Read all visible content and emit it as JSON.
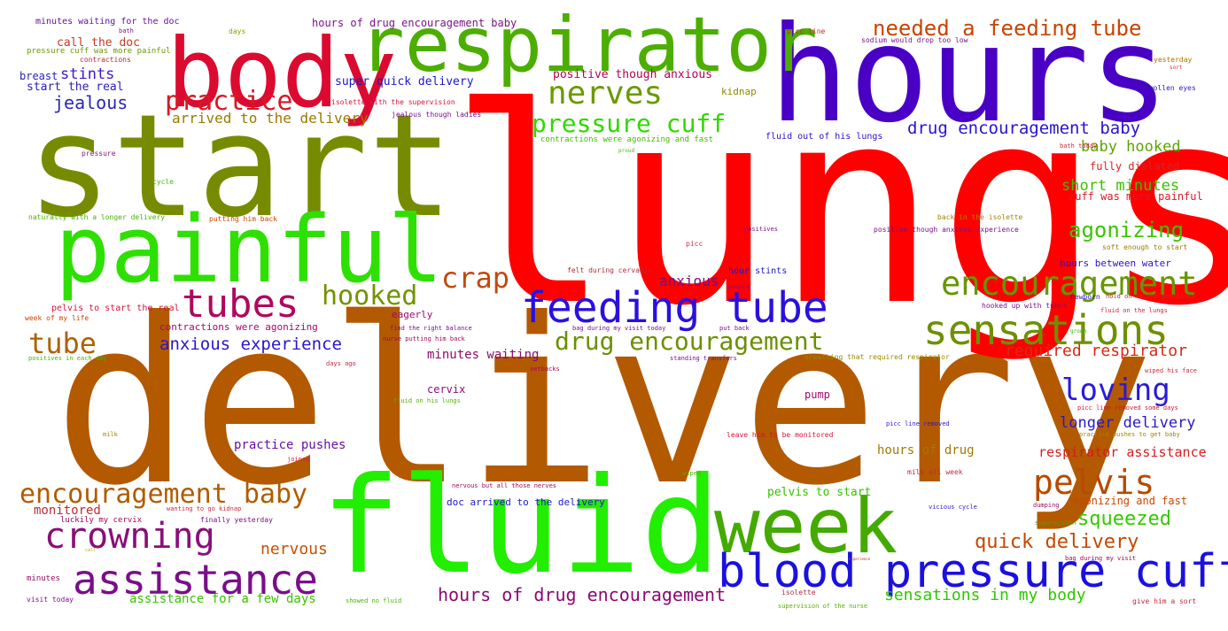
{
  "words": [
    {
      "text": "delivery",
      "color": "#b35900"
    },
    {
      "text": "lungs",
      "color": "#ff0000"
    },
    {
      "text": "start",
      "color": "#778b00"
    },
    {
      "text": "hours",
      "color": "#4a00c4"
    },
    {
      "text": "fluid",
      "color": "#22ee00"
    },
    {
      "text": "body",
      "color": "#dc0a30"
    },
    {
      "text": "respirator",
      "color": "#4cae00"
    },
    {
      "text": "painful",
      "color": "#2ee000"
    },
    {
      "text": "week",
      "color": "#44aa00"
    },
    {
      "text": "blood pressure cuff",
      "color": "#1a10e0"
    },
    {
      "text": "feeding tube",
      "color": "#2a10e0"
    },
    {
      "text": "sensations",
      "color": "#6e9000"
    },
    {
      "text": "encouragement",
      "color": "#669600"
    },
    {
      "text": "assistance",
      "color": "#7a0e8a"
    },
    {
      "text": "crowning",
      "color": "#8a0e7a"
    },
    {
      "text": "tubes",
      "color": "#b0085e"
    },
    {
      "text": "pelvis",
      "color": "#b84a00"
    },
    {
      "text": "encouragement baby",
      "color": "#b05c00"
    },
    {
      "text": "loving",
      "color": "#2a1ad6"
    },
    {
      "text": "nerves",
      "color": "#6a9a00"
    },
    {
      "text": "practice",
      "color": "#d41a24"
    },
    {
      "text": "hooked",
      "color": "#729200"
    },
    {
      "text": "crap",
      "color": "#c04a0c"
    },
    {
      "text": "tube",
      "color": "#b06000"
    },
    {
      "text": "drug encouragement",
      "color": "#6a9000"
    },
    {
      "text": "needed a feeding tube",
      "color": "#c84400"
    },
    {
      "text": "pressure cuff",
      "color": "#30d800"
    },
    {
      "text": "hours of drug encouragement",
      "color": "#8a0a74"
    },
    {
      "text": "agonizing",
      "color": "#3ac400"
    },
    {
      "text": "squeezed",
      "color": "#36c800"
    },
    {
      "text": "quick delivery",
      "color": "#c44800"
    },
    {
      "text": "drug encouragement baby",
      "color": "#2a12d0"
    },
    {
      "text": "anxious experience",
      "color": "#2a16cc"
    },
    {
      "text": "jealous",
      "color": "#2a28b4"
    },
    {
      "text": "nervous",
      "color": "#c65000"
    },
    {
      "text": "required respirator",
      "color": "#d42a16"
    },
    {
      "text": "sensations in my body",
      "color": "#2ec800"
    },
    {
      "text": "longer delivery",
      "color": "#2a18c8"
    },
    {
      "text": "respirator assistance",
      "color": "#d41e24"
    },
    {
      "text": "baby hooked",
      "color": "#5ca400"
    },
    {
      "text": "short minutes",
      "color": "#3ac000"
    },
    {
      "text": "arrived to the delivery",
      "color": "#9a7a00"
    },
    {
      "text": "anxious",
      "color": "#7a0e84"
    },
    {
      "text": "stints",
      "color": "#4018c4"
    },
    {
      "text": "monitored",
      "color": "#bc2c36"
    },
    {
      "text": "practice pushes",
      "color": "#6a10a0"
    },
    {
      "text": "hours of drug",
      "color": "#9c7c00"
    },
    {
      "text": "assistance for a few days",
      "color": "#3ac200"
    },
    {
      "text": "minutes waiting",
      "color": "#8a0c6c"
    },
    {
      "text": "pelvis to start",
      "color": "#3ac000"
    },
    {
      "text": "agonizing and fast",
      "color": "#c84600"
    },
    {
      "text": "positive though anxious",
      "color": "#b40050"
    },
    {
      "text": "super quick delivery",
      "color": "#1c18c4"
    },
    {
      "text": "start the real",
      "color": "#2c20b8"
    },
    {
      "text": "call the doc",
      "color": "#c83a20"
    },
    {
      "text": "breast",
      "color": "#2a24b8"
    },
    {
      "text": "hours of drug encouragement baby",
      "color": "#7a1488"
    },
    {
      "text": "cuff was more painful",
      "color": "#d41c26"
    },
    {
      "text": "fully dialated",
      "color": "#d42424"
    },
    {
      "text": "hours between water",
      "color": "#3010c4"
    },
    {
      "text": "doc arrived to the delivery",
      "color": "#2018c4"
    },
    {
      "text": "contractions were agonizing",
      "color": "#a2086c"
    },
    {
      "text": "cervix",
      "color": "#8a0e7c"
    },
    {
      "text": "pump",
      "color": "#9a0c70"
    },
    {
      "text": "kidnap",
      "color": "#8a8a00"
    },
    {
      "text": "eagerly",
      "color": "#9c0a68"
    },
    {
      "text": "hour stints",
      "color": "#2018c4"
    },
    {
      "text": "fluid out of his lungs",
      "color": "#2a10cc"
    },
    {
      "text": "contractions were agonizing and fast",
      "color": "#44b800"
    },
    {
      "text": "minutes waiting for the doc",
      "color": "#6a10a0"
    },
    {
      "text": "pressure cuff was more painful",
      "color": "#6a9a00"
    },
    {
      "text": "contractions",
      "color": "#b82a30"
    },
    {
      "text": "days",
      "color": "#8aa000"
    },
    {
      "text": "bath",
      "color": "#7a1088"
    },
    {
      "text": "picc line",
      "color": "#c8282c"
    },
    {
      "text": "sodium would drop too low",
      "color": "#7a1088"
    },
    {
      "text": "yesterday",
      "color": "#b07000"
    },
    {
      "text": "sort",
      "color": "#d83030"
    },
    {
      "text": "swollen eyes",
      "color": "#3018c0"
    },
    {
      "text": "isolette with the supervision",
      "color": "#d4143c"
    },
    {
      "text": "jealous though ladies",
      "color": "#7a1090"
    },
    {
      "text": "proud",
      "color": "#54b000"
    },
    {
      "text": "pressure",
      "color": "#8a1478"
    },
    {
      "text": "cycle",
      "color": "#3cc200"
    },
    {
      "text": "bath today",
      "color": "#c8283c"
    },
    {
      "text": "naturally with a longer delivery",
      "color": "#44b400"
    },
    {
      "text": "putting him back",
      "color": "#c84600"
    },
    {
      "text": "back in the isolette",
      "color": "#9a8800"
    },
    {
      "text": "positives",
      "color": "#7a1088"
    },
    {
      "text": "positive though anxious experience",
      "color": "#7a1088"
    },
    {
      "text": "soft enough to start",
      "color": "#9a7c00"
    },
    {
      "text": "picc",
      "color": "#d42c3c"
    },
    {
      "text": "felt during cervadil",
      "color": "#b02c3c"
    },
    {
      "text": "pumping",
      "color": "#a0085c"
    },
    {
      "text": "newborn",
      "color": "#3018c0"
    },
    {
      "text": "hold on to the positives",
      "color": "#c8283c"
    },
    {
      "text": "hooked up with tubes",
      "color": "#7a1088"
    },
    {
      "text": "fluid on the lungs",
      "color": "#c8283c"
    },
    {
      "text": "pelvis to start the real",
      "color": "#d4143c"
    },
    {
      "text": "week of my life",
      "color": "#c84600"
    },
    {
      "text": "find the right balance",
      "color": "#7a1088"
    },
    {
      "text": "nurse putting him back",
      "color": "#a0085c"
    },
    {
      "text": "bag during my visit today",
      "color": "#7a1088"
    },
    {
      "text": "put back",
      "color": "#7a1088"
    },
    {
      "text": "grown",
      "color": "#40b000"
    },
    {
      "text": "positives in each day",
      "color": "#44b400"
    },
    {
      "text": "days ago",
      "color": "#c8283c"
    },
    {
      "text": "standing transfers",
      "color": "#7a1088"
    },
    {
      "text": "breathing that required respirator",
      "color": "#9a8800"
    },
    {
      "text": "setbacks",
      "color": "#a0085c"
    },
    {
      "text": "wiped his face",
      "color": "#c8283c"
    },
    {
      "text": "fluid on his lungs",
      "color": "#54b000"
    },
    {
      "text": "picc line removed some days",
      "color": "#d4143c"
    },
    {
      "text": "milk",
      "color": "#9a8800"
    },
    {
      "text": "picc line removed",
      "color": "#3018c0"
    },
    {
      "text": "practice pushes to get baby",
      "color": "#9a8800"
    },
    {
      "text": "leave him to be monitored",
      "color": "#d4143c"
    },
    {
      "text": "joined",
      "color": "#c8283c"
    },
    {
      "text": "wiped",
      "color": "#54b000"
    },
    {
      "text": "milk all week",
      "color": "#c8283c"
    },
    {
      "text": "nervous but all those nerves",
      "color": "#a0085c"
    },
    {
      "text": "wanting to go kidnap",
      "color": "#c8283c"
    },
    {
      "text": "luckily my cervix",
      "color": "#a0085c"
    },
    {
      "text": "finally yesterday",
      "color": "#7a1088"
    },
    {
      "text": "vicious cycle",
      "color": "#3018c0"
    },
    {
      "text": "dumping",
      "color": "#9a0c64"
    },
    {
      "text": "supervision",
      "color": "#54a000"
    },
    {
      "text": "call",
      "color": "#b0b000"
    },
    {
      "text": "experience",
      "color": "#c82020"
    },
    {
      "text": "bag during my visit",
      "color": "#a0085c"
    },
    {
      "text": "minutes",
      "color": "#9a0c64"
    },
    {
      "text": "isolette",
      "color": "#b02c3c"
    },
    {
      "text": "showed no fluid",
      "color": "#44b400"
    },
    {
      "text": "supervision of the nurse",
      "color": "#54b000"
    },
    {
      "text": "visit today",
      "color": "#7a1088"
    },
    {
      "text": "give him a sort",
      "color": "#c8283c"
    }
  ]
}
